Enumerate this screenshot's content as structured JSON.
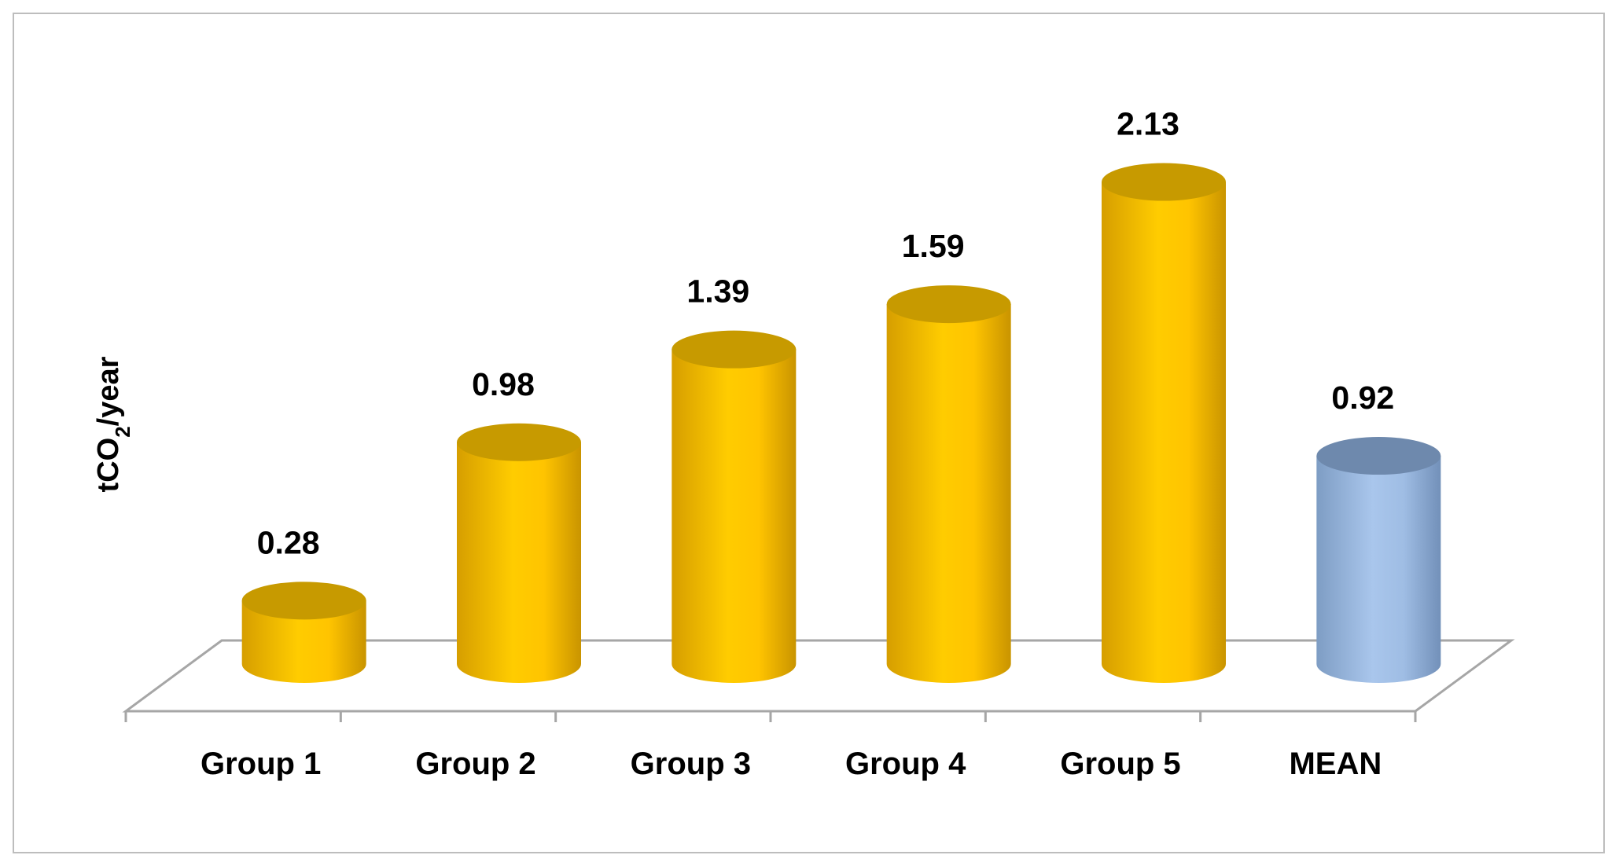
{
  "chart_data": {
    "type": "bar",
    "style": "3d-cylinder",
    "title": "",
    "xlabel": "",
    "ylabel": {
      "main": "tCO",
      "subscript": "2",
      "suffix": "/year"
    },
    "categories": [
      "Group 1",
      "Group 2",
      "Group 3",
      "Group 4",
      "Group 5",
      "MEAN"
    ],
    "values": [
      0.28,
      0.98,
      1.39,
      1.59,
      2.13,
      0.92
    ],
    "value_labels": [
      "0.28",
      "0.98",
      "1.39",
      "1.59",
      "2.13",
      "0.92"
    ],
    "bar_colors": [
      "#FFC000",
      "#FFC000",
      "#FFC000",
      "#FFC000",
      "#FFC000",
      "#95B3D7"
    ],
    "gridlines": false,
    "legend": "none",
    "ylim": [
      0,
      2.5
    ]
  }
}
